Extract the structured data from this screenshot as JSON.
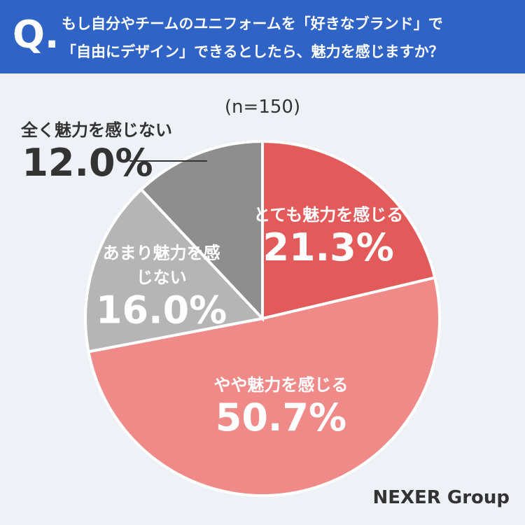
{
  "header": {
    "mark": "Q.",
    "title": [
      "もし自分やチームのユニフォームを「好きなブランド」で",
      "「自由にデザイン」できるとしたら、魅力を感じますか？"
    ]
  },
  "chart_data": {
    "type": "pie",
    "subtitle": "(n=150)",
    "categories": [
      "とても魅力を感じる",
      "やや魅力を感じる",
      "あまり魅力を感じない",
      "全く魅力を感じない"
    ],
    "values": [
      21.3,
      50.7,
      16.0,
      12.0
    ],
    "value_labels": [
      "21.3%",
      "50.7%",
      "16.0%",
      "12.0%"
    ],
    "colors": [
      "#e35a5a",
      "#f08a88",
      "#b5b5b5",
      "#8e8e8e"
    ]
  },
  "logo": "NEXER Group"
}
